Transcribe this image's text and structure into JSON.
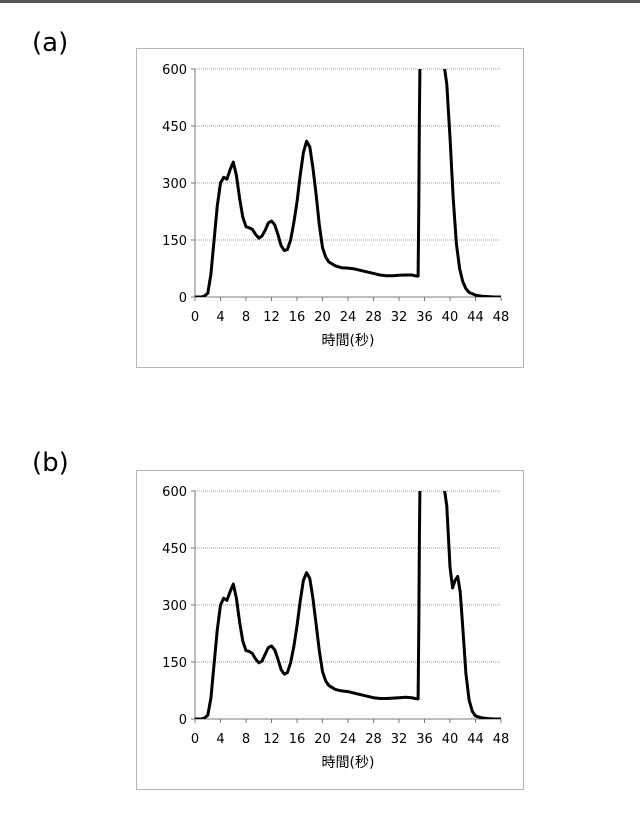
{
  "panels": [
    {
      "label": "(a)"
    },
    {
      "label": "(b)"
    }
  ],
  "chart_data": [
    {
      "type": "line",
      "title": "",
      "xlabel": "時間(秒)",
      "ylabel": "",
      "xlim": [
        0,
        48
      ],
      "ylim": [
        0,
        600
      ],
      "xticks": [
        0,
        4,
        8,
        12,
        16,
        20,
        24,
        28,
        32,
        36,
        40,
        44,
        48
      ],
      "yticks": [
        0,
        150,
        300,
        450,
        600
      ],
      "grid": "horizontal",
      "series": [
        {
          "color": "#000000",
          "x": [
            0,
            1,
            1.5,
            2,
            2.5,
            3,
            3.5,
            4,
            4.5,
            5,
            5.5,
            6,
            6.5,
            7,
            7.5,
            8,
            8.5,
            9,
            9.5,
            10,
            10.5,
            11,
            11.5,
            12,
            12.5,
            13,
            13.5,
            14,
            14.5,
            15,
            15.5,
            16,
            16.5,
            17,
            17.5,
            18,
            18.5,
            19,
            19.5,
            20,
            20.5,
            21,
            22,
            23,
            24,
            25,
            26,
            27,
            28,
            29,
            30,
            31,
            32,
            33,
            34,
            34.5,
            35,
            35.1,
            35.2,
            35.3,
            36,
            37,
            38,
            38.5,
            39,
            39.5,
            40,
            40.5,
            41,
            41.5,
            42,
            42.5,
            43,
            44,
            45,
            46,
            47,
            48
          ],
          "y": [
            0,
            0,
            3,
            10,
            60,
            150,
            240,
            300,
            315,
            310,
            335,
            355,
            320,
            260,
            210,
            185,
            182,
            178,
            165,
            155,
            160,
            175,
            195,
            200,
            190,
            165,
            135,
            122,
            125,
            150,
            195,
            250,
            320,
            380,
            410,
            395,
            340,
            270,
            190,
            130,
            105,
            92,
            82,
            77,
            76,
            74,
            70,
            66,
            62,
            58,
            56,
            56,
            57,
            58,
            58,
            56,
            55,
            240,
            480,
            620,
            620,
            620,
            620,
            620,
            620,
            560,
            420,
            260,
            140,
            75,
            40,
            22,
            12,
            5,
            2,
            1,
            0,
            0
          ]
        }
      ]
    },
    {
      "type": "line",
      "title": "",
      "xlabel": "時間(秒)",
      "ylabel": "",
      "xlim": [
        0,
        48
      ],
      "ylim": [
        0,
        600
      ],
      "xticks": [
        0,
        4,
        8,
        12,
        16,
        20,
        24,
        28,
        32,
        36,
        40,
        44,
        48
      ],
      "yticks": [
        0,
        150,
        300,
        450,
        600
      ],
      "grid": "horizontal",
      "series": [
        {
          "color": "#000000",
          "x": [
            0,
            1,
            1.5,
            2,
            2.5,
            3,
            3.5,
            4,
            4.5,
            5,
            5.5,
            6,
            6.5,
            7,
            7.5,
            8,
            8.5,
            9,
            9.5,
            10,
            10.5,
            11,
            11.5,
            12,
            12.5,
            13,
            13.5,
            14,
            14.5,
            15,
            15.5,
            16,
            16.5,
            17,
            17.5,
            18,
            18.5,
            19,
            19.5,
            20,
            20.5,
            21,
            22,
            23,
            24,
            25,
            26,
            27,
            28,
            29,
            30,
            31,
            32,
            33,
            34,
            34.5,
            35,
            35.1,
            35.2,
            35.3,
            36,
            37,
            38,
            38.5,
            39,
            39.5,
            40,
            40.4,
            40.8,
            41.2,
            41.6,
            42,
            42.5,
            43,
            43.5,
            44,
            45,
            46,
            47,
            48
          ],
          "y": [
            0,
            0,
            3,
            10,
            55,
            145,
            235,
            300,
            318,
            312,
            335,
            355,
            318,
            255,
            205,
            180,
            178,
            172,
            158,
            148,
            152,
            170,
            188,
            192,
            182,
            158,
            130,
            118,
            122,
            148,
            190,
            245,
            310,
            365,
            385,
            370,
            318,
            250,
            180,
            125,
            100,
            88,
            78,
            74,
            72,
            68,
            64,
            60,
            56,
            54,
            54,
            55,
            56,
            57,
            56,
            54,
            53,
            240,
            480,
            620,
            620,
            620,
            620,
            620,
            620,
            560,
            400,
            345,
            365,
            375,
            335,
            240,
            120,
            50,
            20,
            8,
            3,
            1,
            0,
            0
          ]
        }
      ]
    }
  ]
}
